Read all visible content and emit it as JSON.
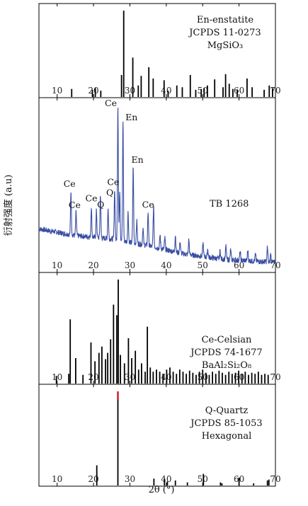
{
  "chart_data": {
    "type": "bar",
    "xlabel": "2θ (°)",
    "ylabel": "衍射强度 (a.u)",
    "xlim": [
      5,
      70
    ],
    "xticks": [
      10,
      20,
      30,
      40,
      50,
      60,
      70
    ],
    "panels": [
      {
        "name": "En-enstatite",
        "text_lines": [
          "En-enstatite",
          "JCPDS 11-0273",
          "MgSiO₃"
        ],
        "type": "bar",
        "ylim": [
          0,
          100
        ],
        "peaks": [
          {
            "x": 14.0,
            "y": 10
          },
          {
            "x": 19.7,
            "y": 9
          },
          {
            "x": 20.5,
            "y": 11
          },
          {
            "x": 22.0,
            "y": 8
          },
          {
            "x": 27.7,
            "y": 26
          },
          {
            "x": 28.3,
            "y": 100
          },
          {
            "x": 30.8,
            "y": 46
          },
          {
            "x": 32.3,
            "y": 14
          },
          {
            "x": 33.1,
            "y": 25
          },
          {
            "x": 35.2,
            "y": 35
          },
          {
            "x": 36.4,
            "y": 22
          },
          {
            "x": 39.4,
            "y": 20
          },
          {
            "x": 40.5,
            "y": 8
          },
          {
            "x": 42.9,
            "y": 14
          },
          {
            "x": 44.4,
            "y": 12
          },
          {
            "x": 46.6,
            "y": 26
          },
          {
            "x": 48.1,
            "y": 9
          },
          {
            "x": 49.6,
            "y": 10
          },
          {
            "x": 50.4,
            "y": 11
          },
          {
            "x": 51.3,
            "y": 14
          },
          {
            "x": 53.3,
            "y": 21
          },
          {
            "x": 55.6,
            "y": 12
          },
          {
            "x": 56.3,
            "y": 27
          },
          {
            "x": 57.3,
            "y": 16
          },
          {
            "x": 58.3,
            "y": 10
          },
          {
            "x": 59.5,
            "y": 9
          },
          {
            "x": 62.2,
            "y": 22
          },
          {
            "x": 63.6,
            "y": 12
          },
          {
            "x": 66.9,
            "y": 9
          },
          {
            "x": 68.3,
            "y": 14
          },
          {
            "x": 69.2,
            "y": 11
          }
        ]
      },
      {
        "name": "TB 1268",
        "text_lines": [
          "TB 1268"
        ],
        "type": "line",
        "color": "#3a4ea3",
        "ylim": [
          0,
          100
        ],
        "baseline": [
          [
            5,
            26
          ],
          [
            15,
            22
          ],
          [
            25,
            20
          ],
          [
            35,
            16
          ],
          [
            45,
            11
          ],
          [
            55,
            8
          ],
          [
            70,
            6
          ]
        ],
        "peaks": [
          {
            "x": 13.8,
            "y": 26
          },
          {
            "x": 15.2,
            "y": 14
          },
          {
            "x": 19.4,
            "y": 18
          },
          {
            "x": 20.8,
            "y": 16
          },
          {
            "x": 21.9,
            "y": 26
          },
          {
            "x": 24.0,
            "y": 18
          },
          {
            "x": 25.8,
            "y": 30
          },
          {
            "x": 26.7,
            "y": 80
          },
          {
            "x": 27.2,
            "y": 30
          },
          {
            "x": 28.1,
            "y": 72
          },
          {
            "x": 29.5,
            "y": 18
          },
          {
            "x": 30.9,
            "y": 46
          },
          {
            "x": 31.9,
            "y": 14
          },
          {
            "x": 33.6,
            "y": 10
          },
          {
            "x": 35.0,
            "y": 20
          },
          {
            "x": 36.5,
            "y": 24
          },
          {
            "x": 38.3,
            "y": 8
          },
          {
            "x": 39.6,
            "y": 7
          },
          {
            "x": 42.5,
            "y": 10
          },
          {
            "x": 43.8,
            "y": 7
          },
          {
            "x": 46.2,
            "y": 9
          },
          {
            "x": 50.1,
            "y": 8
          },
          {
            "x": 51.4,
            "y": 5
          },
          {
            "x": 54.8,
            "y": 5
          },
          {
            "x": 56.4,
            "y": 8
          },
          {
            "x": 57.7,
            "y": 6
          },
          {
            "x": 60.3,
            "y": 5
          },
          {
            "x": 62.4,
            "y": 6
          },
          {
            "x": 64.5,
            "y": 4
          },
          {
            "x": 67.8,
            "y": 9
          },
          {
            "x": 68.7,
            "y": 5
          }
        ],
        "annotations": [
          {
            "text": "Ce",
            "x": 13.8
          },
          {
            "text": "Ce",
            "x": 15.2
          },
          {
            "text": "Ce",
            "x": 19.4
          },
          {
            "text": "Q",
            "x": 20.8
          },
          {
            "text": "Ce",
            "x": 25.8
          },
          {
            "text": "Ce",
            "x": 26.7
          },
          {
            "text": "Q",
            "x": 27.2
          },
          {
            "text": "En",
            "x": 28.1
          },
          {
            "text": "En",
            "x": 30.9
          },
          {
            "text": "Ce",
            "x": 35.0
          }
        ]
      },
      {
        "name": "Ce-Celsian",
        "text_lines": [
          "Ce-Celsian",
          "JCPDS 74-1677",
          "BaAl₂Si₂O₈"
        ],
        "type": "bar",
        "ylim": [
          0,
          100
        ],
        "peaks": [
          {
            "x": 9.8,
            "y": 8
          },
          {
            "x": 13.2,
            "y": 10
          },
          {
            "x": 13.6,
            "y": 62
          },
          {
            "x": 15.1,
            "y": 25
          },
          {
            "x": 17.1,
            "y": 9
          },
          {
            "x": 19.3,
            "y": 40
          },
          {
            "x": 20.4,
            "y": 22
          },
          {
            "x": 21.5,
            "y": 30
          },
          {
            "x": 22.3,
            "y": 36
          },
          {
            "x": 23.3,
            "y": 24
          },
          {
            "x": 23.9,
            "y": 30
          },
          {
            "x": 24.7,
            "y": 43
          },
          {
            "x": 25.5,
            "y": 76
          },
          {
            "x": 26.4,
            "y": 66
          },
          {
            "x": 26.8,
            "y": 100
          },
          {
            "x": 27.4,
            "y": 28
          },
          {
            "x": 28.5,
            "y": 20
          },
          {
            "x": 29.6,
            "y": 44
          },
          {
            "x": 30.5,
            "y": 25
          },
          {
            "x": 31.5,
            "y": 32
          },
          {
            "x": 32.4,
            "y": 14
          },
          {
            "x": 33.2,
            "y": 20
          },
          {
            "x": 34.2,
            "y": 12
          },
          {
            "x": 34.8,
            "y": 55
          },
          {
            "x": 35.6,
            "y": 16
          },
          {
            "x": 36.4,
            "y": 12
          },
          {
            "x": 37.3,
            "y": 14
          },
          {
            "x": 38.2,
            "y": 12
          },
          {
            "x": 39.1,
            "y": 10
          },
          {
            "x": 40.1,
            "y": 14
          },
          {
            "x": 41.0,
            "y": 16
          },
          {
            "x": 41.9,
            "y": 12
          },
          {
            "x": 42.8,
            "y": 10
          },
          {
            "x": 43.7,
            "y": 14
          },
          {
            "x": 44.6,
            "y": 12
          },
          {
            "x": 45.5,
            "y": 10
          },
          {
            "x": 46.4,
            "y": 13
          },
          {
            "x": 47.3,
            "y": 11
          },
          {
            "x": 48.2,
            "y": 9
          },
          {
            "x": 49.1,
            "y": 12
          },
          {
            "x": 50.0,
            "y": 14
          },
          {
            "x": 50.9,
            "y": 11
          },
          {
            "x": 51.8,
            "y": 9
          },
          {
            "x": 52.7,
            "y": 12
          },
          {
            "x": 53.6,
            "y": 10
          },
          {
            "x": 54.5,
            "y": 13
          },
          {
            "x": 55.4,
            "y": 11
          },
          {
            "x": 56.3,
            "y": 9
          },
          {
            "x": 57.2,
            "y": 12
          },
          {
            "x": 58.1,
            "y": 10
          },
          {
            "x": 59.0,
            "y": 11
          },
          {
            "x": 59.9,
            "y": 13
          },
          {
            "x": 60.8,
            "y": 10
          },
          {
            "x": 61.7,
            "y": 12
          },
          {
            "x": 62.6,
            "y": 9
          },
          {
            "x": 63.5,
            "y": 11
          },
          {
            "x": 64.4,
            "y": 10
          },
          {
            "x": 65.3,
            "y": 12
          },
          {
            "x": 66.2,
            "y": 9
          },
          {
            "x": 67.1,
            "y": 10
          },
          {
            "x": 68.0,
            "y": 9
          }
        ]
      },
      {
        "name": "Q-Quartz",
        "text_lines": [
          "Q-Quartz",
          "JCPDS 85-1053",
          "Hexagonal"
        ],
        "type": "bar",
        "ylim": [
          0,
          100
        ],
        "highlight_color": "#d6243a",
        "peaks": [
          {
            "x": 20.9,
            "y": 22
          },
          {
            "x": 26.7,
            "y": 100,
            "highlight": true
          },
          {
            "x": 36.6,
            "y": 8
          },
          {
            "x": 39.5,
            "y": 8
          },
          {
            "x": 40.3,
            "y": 5
          },
          {
            "x": 42.5,
            "y": 6
          },
          {
            "x": 45.8,
            "y": 4
          },
          {
            "x": 50.2,
            "y": 13
          },
          {
            "x": 54.9,
            "y": 4
          },
          {
            "x": 55.3,
            "y": 3
          },
          {
            "x": 60.0,
            "y": 9
          },
          {
            "x": 64.0,
            "y": 3
          },
          {
            "x": 67.8,
            "y": 6
          },
          {
            "x": 68.2,
            "y": 7
          }
        ]
      }
    ]
  }
}
